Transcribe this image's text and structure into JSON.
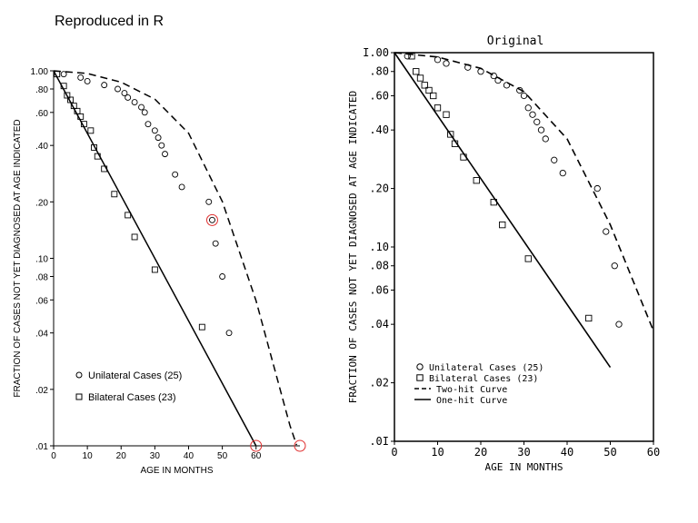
{
  "chart_data": [
    {
      "type": "scatter",
      "panel": "left",
      "title": "Reproduced in R",
      "xlabel": "AGE IN MONTHS",
      "ylabel": "FRACTION OF CASES NOT YET DIAGNOSED AT AGE INDICATED",
      "xlim": [
        0,
        73
      ],
      "ylim": [
        0.01,
        1.0
      ],
      "yscale": "log",
      "x_ticks": [
        "0",
        "10",
        "20",
        "30",
        "40",
        "50",
        "60"
      ],
      "x_tick_values": [
        0,
        10,
        20,
        30,
        40,
        50,
        60
      ],
      "y_ticks": [
        "1.00",
        ".80",
        ".60",
        ".40",
        ".20",
        ".10",
        ".08",
        ".06",
        ".04",
        ".02",
        ".01"
      ],
      "y_tick_values": [
        1.0,
        0.8,
        0.6,
        0.4,
        0.2,
        0.1,
        0.08,
        0.06,
        0.04,
        0.02,
        0.01
      ],
      "legend": [
        {
          "marker": "circle",
          "label": "Unilateral Cases (25)"
        },
        {
          "marker": "square",
          "label": "Bilateral Cases (23)"
        }
      ],
      "series": [
        {
          "name": "Unilateral Cases (25)",
          "marker": "circle",
          "x": [
            3,
            8,
            10,
            15,
            19,
            21,
            22,
            24,
            26,
            27,
            28,
            30,
            31,
            32,
            33,
            36,
            38,
            46,
            47,
            48,
            50,
            52
          ],
          "y": [
            0.96,
            0.92,
            0.88,
            0.84,
            0.8,
            0.76,
            0.72,
            0.68,
            0.64,
            0.6,
            0.52,
            0.48,
            0.44,
            0.4,
            0.36,
            0.28,
            0.24,
            0.2,
            0.16,
            0.12,
            0.08,
            0.04
          ]
        },
        {
          "name": "Bilateral Cases (23)",
          "marker": "square",
          "x": [
            1,
            3,
            4,
            5,
            6,
            7,
            8,
            9,
            11,
            12,
            13,
            15,
            18,
            22,
            24,
            30,
            44
          ],
          "y": [
            0.96,
            0.83,
            0.74,
            0.7,
            0.65,
            0.61,
            0.57,
            0.52,
            0.48,
            0.39,
            0.35,
            0.3,
            0.22,
            0.17,
            0.13,
            0.087,
            0.043
          ]
        },
        {
          "name": "Two-hit Curve",
          "style": "dashed",
          "x": [
            0,
            10,
            20,
            30,
            40,
            50,
            60,
            70,
            72
          ],
          "y": [
            1.0,
            0.968,
            0.87,
            0.706,
            0.465,
            0.201,
            0.0595,
            0.0129,
            0.0101
          ]
        },
        {
          "name": "One-hit Curve",
          "style": "solid",
          "x": [
            0,
            60
          ],
          "y": [
            1.0,
            0.01
          ]
        }
      ],
      "annotations": [
        {
          "type": "red-circle",
          "x": 47,
          "y": 0.16
        },
        {
          "type": "red-circle",
          "x": 60,
          "y": 0.01
        },
        {
          "type": "red-circle",
          "x": 73,
          "y": 0.01
        }
      ]
    },
    {
      "type": "scatter",
      "panel": "right",
      "title": "Original",
      "xlabel": "AGE IN MONTHS",
      "ylabel": "FRACTION OF CASES NOT YET DIAGNOSED AT AGE INDICATED",
      "xlim": [
        0,
        60
      ],
      "ylim": [
        0.01,
        1.0
      ],
      "yscale": "log",
      "x_ticks": [
        "0",
        "10",
        "20",
        "30",
        "40",
        "50",
        "60"
      ],
      "x_tick_values": [
        0,
        10,
        20,
        30,
        40,
        50,
        60
      ],
      "y_ticks": [
        "I.00",
        ".80",
        ".60",
        ".40",
        ".20",
        ".10",
        ".08",
        ".06",
        ".04",
        ".02",
        ".0I"
      ],
      "y_tick_values": [
        1.0,
        0.8,
        0.6,
        0.4,
        0.2,
        0.1,
        0.08,
        0.06,
        0.04,
        0.02,
        0.01
      ],
      "legend": [
        {
          "marker": "circle",
          "label": "Unilateral Cases (25)"
        },
        {
          "marker": "square",
          "label": "Bilateral Cases (23)"
        },
        {
          "marker": "dashed",
          "label": "Two-hit Curve"
        },
        {
          "marker": "solid",
          "label": "One-hit Curve"
        }
      ],
      "series": [
        {
          "name": "Unilateral Cases (25)",
          "marker": "circle",
          "x": [
            3,
            10,
            12,
            17,
            20,
            23,
            24,
            26,
            29,
            30,
            31,
            32,
            33,
            34,
            35,
            37,
            39,
            47,
            49,
            51,
            52
          ],
          "y": [
            0.96,
            0.92,
            0.88,
            0.84,
            0.8,
            0.76,
            0.72,
            0.68,
            0.64,
            0.6,
            0.52,
            0.48,
            0.44,
            0.4,
            0.36,
            0.28,
            0.24,
            0.2,
            0.12,
            0.08,
            0.04
          ]
        },
        {
          "name": "Bilateral Cases (23)",
          "marker": "square",
          "x": [
            4,
            5,
            6,
            7,
            8,
            9,
            10,
            12,
            13,
            14,
            16,
            19,
            23,
            25,
            31,
            45
          ],
          "y": [
            0.96,
            0.8,
            0.74,
            0.68,
            0.64,
            0.6,
            0.52,
            0.48,
            0.38,
            0.34,
            0.29,
            0.22,
            0.17,
            0.13,
            0.087,
            0.043
          ]
        },
        {
          "name": "Two-hit Curve",
          "style": "dashed",
          "x": [
            0,
            10,
            20,
            30,
            40,
            50,
            60
          ],
          "y": [
            1.0,
            0.95,
            0.83,
            0.63,
            0.36,
            0.13,
            0.037
          ]
        },
        {
          "name": "One-hit Curve",
          "style": "solid",
          "x": [
            0,
            50
          ],
          "y": [
            1.0,
            0.024
          ]
        }
      ]
    }
  ]
}
